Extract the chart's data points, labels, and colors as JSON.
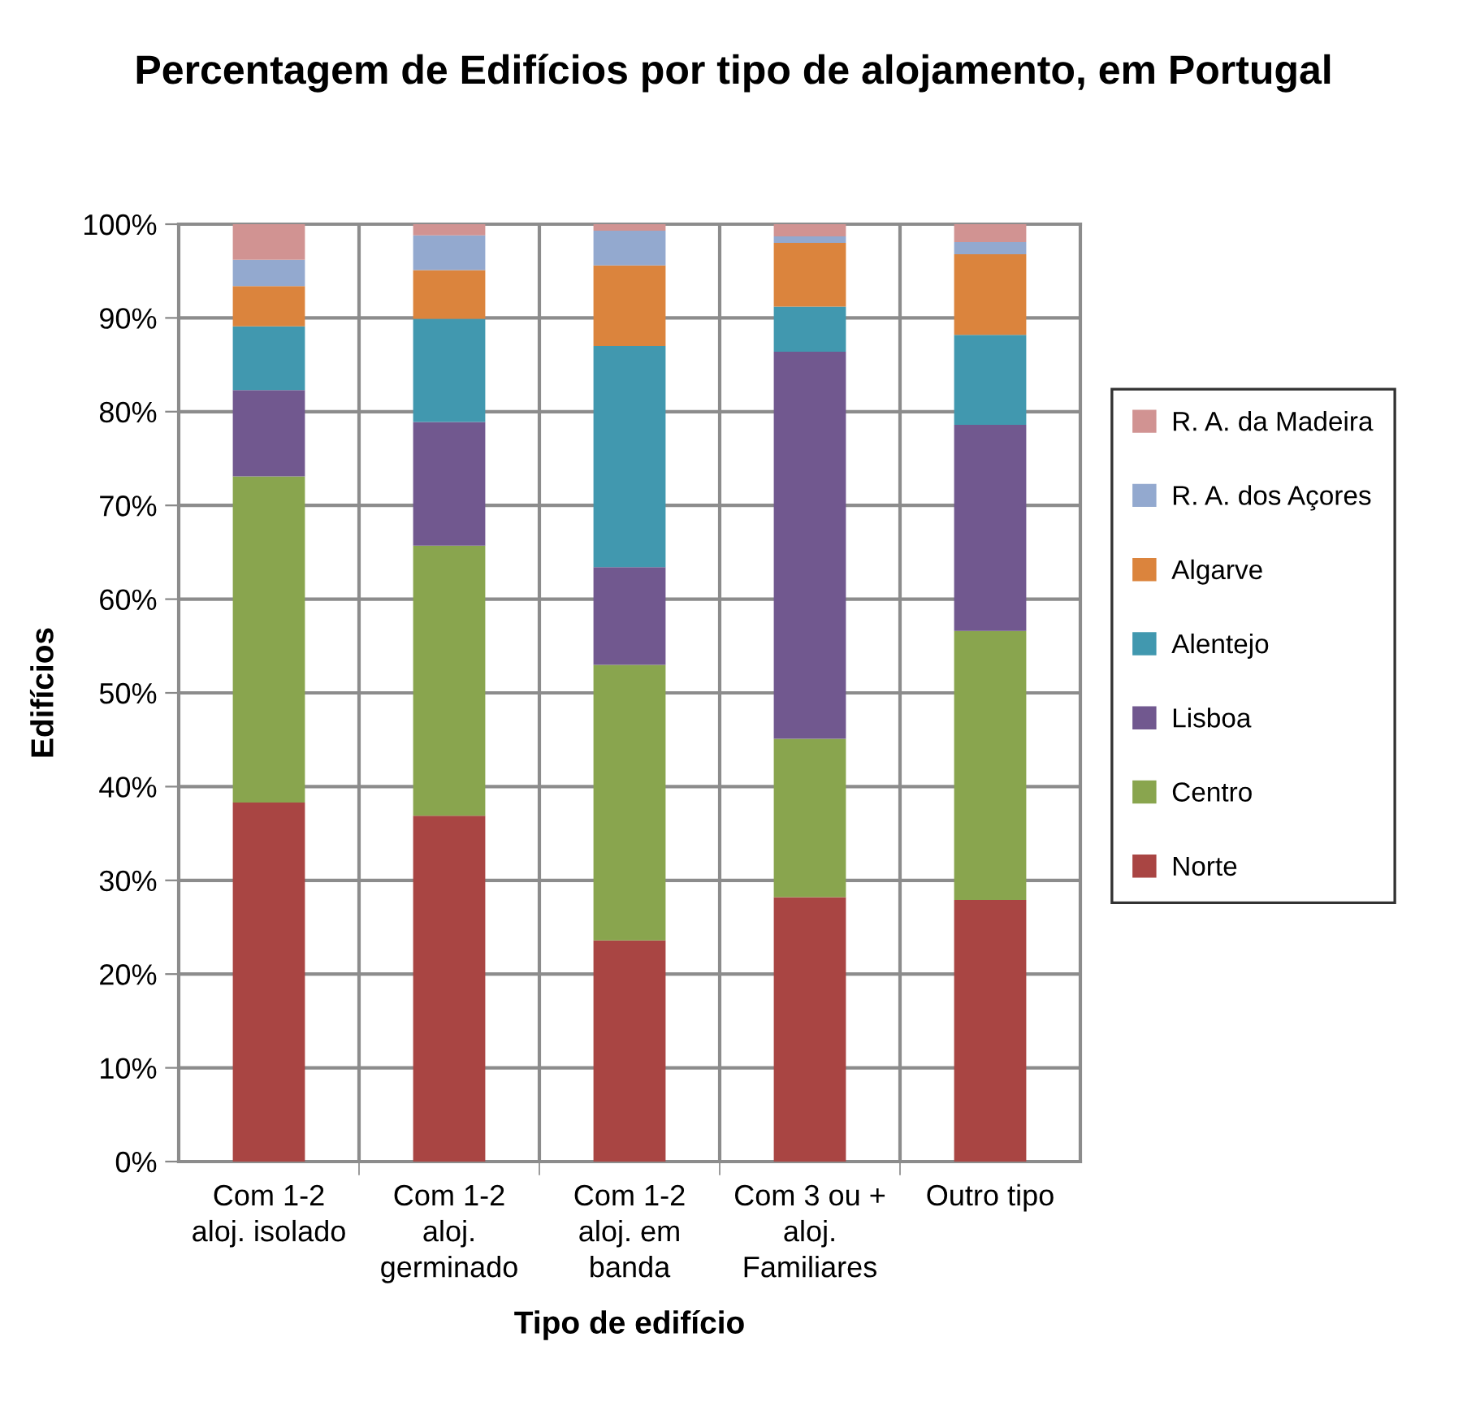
{
  "chart_data": {
    "type": "bar",
    "stacked": true,
    "title": "Percentagem de Edifícios por tipo de alojamento, em Portugal",
    "xlabel": "Tipo de edifício",
    "ylabel": "Edifícios",
    "categories": [
      "Com 1-2\naloj. isolado",
      "Com 1-2\naloj.\ngerminado",
      "Com 1-2\naloj. em\nbanda",
      "Com 3 ou +\naloj.\nFamiliares",
      "Outro tipo"
    ],
    "series": [
      {
        "name": "Norte",
        "color": "#a94543",
        "values": [
          38.3,
          36.9,
          23.6,
          28.2,
          27.9
        ]
      },
      {
        "name": "Centro",
        "color": "#89a54e",
        "values": [
          34.8,
          28.8,
          29.4,
          16.9,
          28.7
        ]
      },
      {
        "name": "Lisboa",
        "color": "#71588f",
        "values": [
          9.2,
          13.2,
          10.4,
          41.3,
          22.0
        ]
      },
      {
        "name": "Alentejo",
        "color": "#4198af",
        "values": [
          6.8,
          11.0,
          23.6,
          4.8,
          9.6
        ]
      },
      {
        "name": "Algarve",
        "color": "#db843d",
        "values": [
          4.3,
          5.2,
          8.6,
          6.8,
          8.6
        ]
      },
      {
        "name": "R. A. dos Açores",
        "color": "#93a9cf",
        "values": [
          2.8,
          3.7,
          3.7,
          0.7,
          1.3
        ]
      },
      {
        "name": "R. A. da Madeira",
        "color": "#d19392",
        "values": [
          3.8,
          1.2,
          0.7,
          1.3,
          1.9
        ]
      }
    ],
    "ylim": [
      0,
      100
    ],
    "yticks": [
      {
        "value": 0,
        "label": "0%"
      },
      {
        "value": 10,
        "label": "10%"
      },
      {
        "value": 20,
        "label": "20%"
      },
      {
        "value": 30,
        "label": "30%"
      },
      {
        "value": 40,
        "label": "40%"
      },
      {
        "value": 50,
        "label": "50%"
      },
      {
        "value": 60,
        "label": "60%"
      },
      {
        "value": 70,
        "label": "70%"
      },
      {
        "value": 80,
        "label": "80%"
      },
      {
        "value": 90,
        "label": "90%"
      },
      {
        "value": 100,
        "label": "100%"
      }
    ],
    "grid": true,
    "legend": "right"
  }
}
